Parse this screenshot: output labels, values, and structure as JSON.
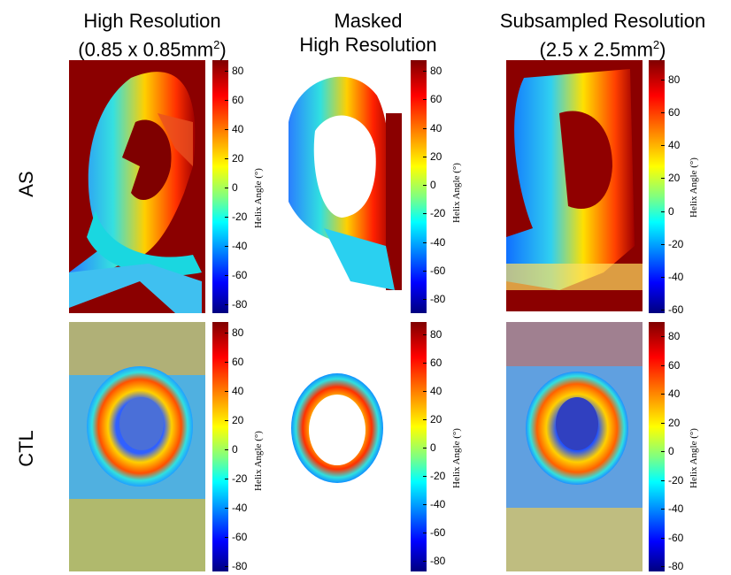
{
  "columns": [
    {
      "line1": "High Resolution",
      "line2": "(0.85 x 0.85mm",
      "sup": "2",
      "line2_end": ")"
    },
    {
      "line1": "Masked",
      "line2": "High Resolution",
      "sup": "",
      "line2_end": ""
    },
    {
      "line1": "Subsampled Resolution",
      "line2": "(2.5 x 2.5mm",
      "sup": "2",
      "line2_end": ")"
    }
  ],
  "rows": [
    "AS",
    "CTL"
  ],
  "colorbar_label": "Helix Angle (°)",
  "colorbars": {
    "r0c0": [
      "80",
      "60",
      "40",
      "20",
      "0",
      "-20",
      "-40",
      "-60",
      "-80"
    ],
    "r0c1": [
      "80",
      "60",
      "40",
      "20",
      "0",
      "-20",
      "-40",
      "-60",
      "-80"
    ],
    "r0c2": [
      "80",
      "60",
      "40",
      "20",
      "0",
      "-20",
      "-40",
      "-60"
    ],
    "r1c0": [
      "80",
      "60",
      "40",
      "20",
      "0",
      "-20",
      "-40",
      "-60",
      "-80"
    ],
    "r1c1": [
      "80",
      "60",
      "40",
      "20",
      "0",
      "-20",
      "-40",
      "-60",
      "-80"
    ],
    "r1c2": [
      "80",
      "60",
      "40",
      "20",
      "0",
      "-20",
      "-40",
      "-60",
      "-80"
    ]
  },
  "colors": {
    "background_map": "#8b0000"
  }
}
